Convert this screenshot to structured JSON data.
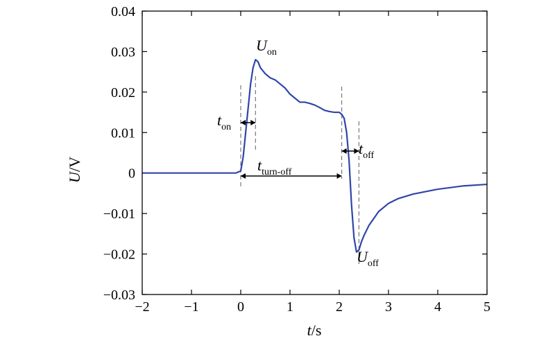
{
  "chart_data": {
    "type": "line",
    "title": "",
    "xlabel": {
      "var": "t",
      "unit": "/s"
    },
    "ylabel": {
      "var": "U",
      "unit": "/V"
    },
    "xlim": [
      -2,
      5
    ],
    "ylim": [
      -0.03,
      0.04
    ],
    "xticks": [
      -2,
      -1,
      0,
      1,
      2,
      3,
      4,
      5
    ],
    "xtick_labels": [
      "−2",
      "−1",
      "0",
      "1",
      "2",
      "3",
      "4",
      "5"
    ],
    "yticks": [
      -0.03,
      -0.02,
      -0.01,
      0,
      0.01,
      0.02,
      0.03,
      0.04
    ],
    "ytick_labels": [
      "−0.03",
      "−0.02",
      "−0.01",
      "0",
      "0.01",
      "0.02",
      "0.03",
      "0.04"
    ],
    "grid": false,
    "series": [
      {
        "color": "#2f45a8",
        "x": [
          -2.0,
          -1.5,
          -1.0,
          -0.5,
          -0.1,
          0.0,
          0.05,
          0.1,
          0.15,
          0.2,
          0.25,
          0.3,
          0.35,
          0.4,
          0.5,
          0.6,
          0.7,
          0.8,
          0.9,
          1.0,
          1.1,
          1.2,
          1.3,
          1.4,
          1.5,
          1.6,
          1.7,
          1.8,
          1.9,
          2.0,
          2.05,
          2.1,
          2.15,
          2.2,
          2.25,
          2.3,
          2.35,
          2.4,
          2.45,
          2.5,
          2.6,
          2.8,
          3.0,
          3.2,
          3.5,
          4.0,
          4.5,
          5.0
        ],
        "y": [
          0.0,
          0.0,
          0.0,
          0.0,
          0.0,
          0.0005,
          0.004,
          0.01,
          0.016,
          0.022,
          0.026,
          0.028,
          0.0275,
          0.026,
          0.0245,
          0.0235,
          0.023,
          0.022,
          0.021,
          0.0195,
          0.0185,
          0.0175,
          0.0175,
          0.0172,
          0.0168,
          0.0162,
          0.0155,
          0.0152,
          0.015,
          0.015,
          0.0145,
          0.0135,
          0.01,
          0.003,
          -0.008,
          -0.016,
          -0.0195,
          -0.019,
          -0.017,
          -0.0155,
          -0.013,
          -0.0095,
          -0.0075,
          -0.0063,
          -0.0052,
          -0.004,
          -0.0032,
          -0.0028
        ]
      }
    ],
    "markers": [
      0.0,
      0.3,
      2.05,
      2.4
    ],
    "annotations": {
      "t_on": {
        "main": "t",
        "sub": "on"
      },
      "t_turn_off": {
        "main": "t",
        "sub": "turn-off"
      },
      "t_off": {
        "main": "t",
        "sub": "off"
      },
      "U_on": {
        "main": "U",
        "sub": "on"
      },
      "U_off": {
        "main": "U",
        "sub": "off"
      }
    }
  }
}
